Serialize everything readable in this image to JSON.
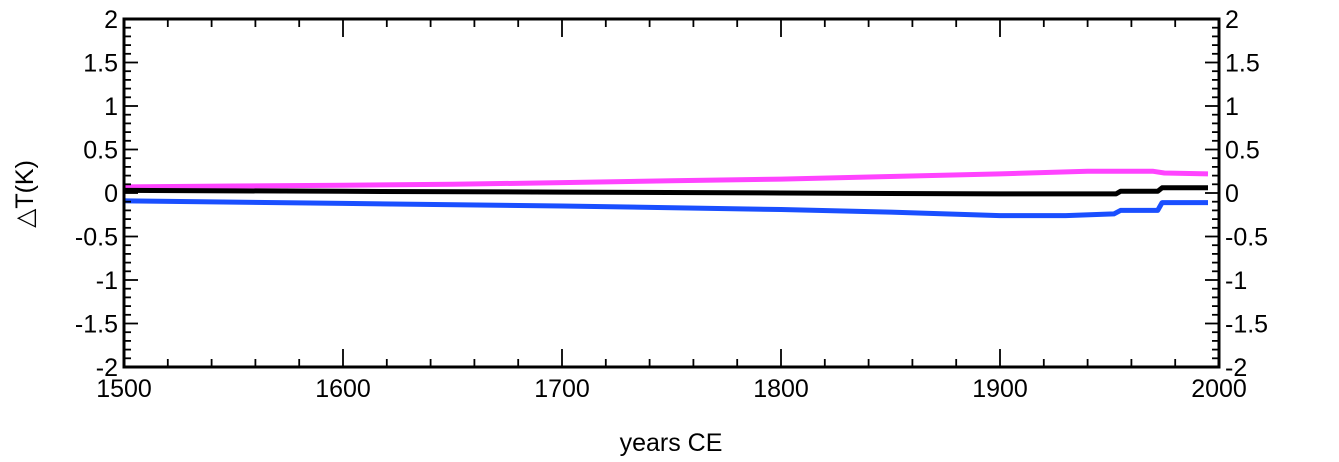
{
  "chart_data": {
    "type": "line",
    "xlabel": "years CE",
    "ylabel": "△T(K)",
    "xlim": [
      1500,
      2000
    ],
    "ylim": [
      -2,
      2
    ],
    "x_ticks": [
      "1500",
      "1600",
      "1700",
      "1800",
      "1900",
      "2000"
    ],
    "y_ticks": [
      "2",
      "1.5",
      "1",
      "0.5",
      "0",
      "-0.5",
      "-1",
      "-1.5",
      "-2"
    ],
    "right_axis_ticks": [
      "2",
      "1.5",
      "1",
      "0.5",
      "0",
      "-0.5",
      "-1",
      "-1.5",
      "-2"
    ],
    "grid": false,
    "series": [
      {
        "color": "#ff44ff",
        "x": [
          1500,
          1550,
          1600,
          1650,
          1700,
          1750,
          1800,
          1850,
          1900,
          1940,
          1970,
          1975,
          1995
        ],
        "y": [
          0.07,
          0.08,
          0.09,
          0.1,
          0.12,
          0.14,
          0.16,
          0.19,
          0.22,
          0.25,
          0.25,
          0.23,
          0.22
        ]
      },
      {
        "color": "#000000",
        "x": [
          1500,
          1600,
          1700,
          1800,
          1900,
          1935,
          1953,
          1955,
          1972,
          1974,
          1995
        ],
        "y": [
          0.03,
          0.02,
          0.01,
          0.0,
          -0.01,
          -0.01,
          -0.01,
          0.02,
          0.02,
          0.06,
          0.06
        ]
      },
      {
        "color": "#1a4fff",
        "x": [
          1500,
          1600,
          1700,
          1800,
          1850,
          1900,
          1930,
          1952,
          1955,
          1972,
          1974,
          1995
        ],
        "y": [
          -0.09,
          -0.12,
          -0.15,
          -0.19,
          -0.22,
          -0.26,
          -0.26,
          -0.24,
          -0.2,
          -0.2,
          -0.11,
          -0.11
        ]
      }
    ]
  }
}
